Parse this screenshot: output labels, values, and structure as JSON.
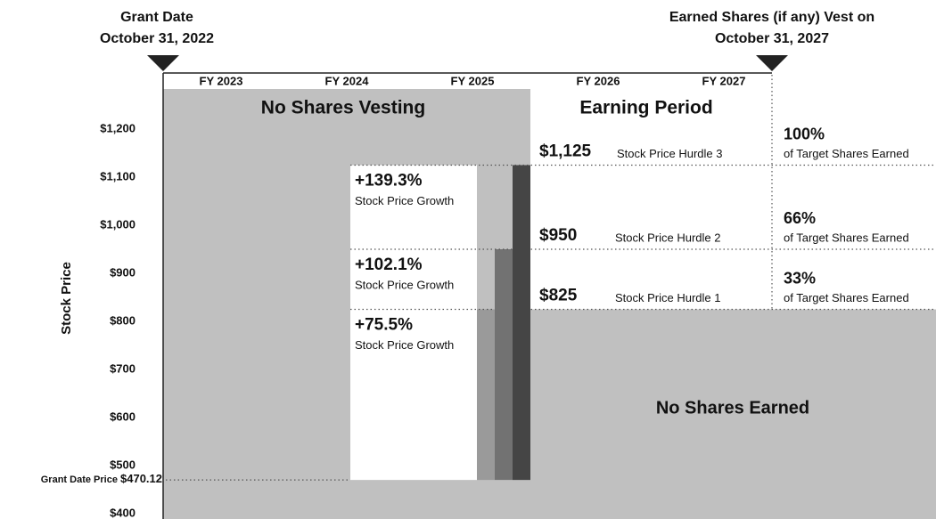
{
  "grant_date": {
    "title": "Grant Date",
    "date": "October 31, 2022"
  },
  "vest_date": {
    "title": "Earned Shares (if any) Vest on",
    "date": "October 31, 2027"
  },
  "fiscal_years": [
    "FY 2023",
    "FY 2024",
    "FY 2025",
    "FY 2026",
    "FY 2027"
  ],
  "y_axis": {
    "label": "Stock Price",
    "ticks": [
      {
        "value": 400,
        "label": "$400"
      },
      {
        "value": 500,
        "label": "$500"
      },
      {
        "value": 600,
        "label": "$600"
      },
      {
        "value": 700,
        "label": "$700"
      },
      {
        "value": 800,
        "label": "$800"
      },
      {
        "value": 900,
        "label": "$900"
      },
      {
        "value": 1000,
        "label": "$1,000"
      },
      {
        "value": 1100,
        "label": "$1,100"
      },
      {
        "value": 1200,
        "label": "$1,200"
      }
    ]
  },
  "grant_price": {
    "label": "Grant Date Price",
    "value": 470.12,
    "value_label": "$470.12"
  },
  "regions": {
    "no_vesting": "No Shares Vesting",
    "earning": "Earning Period",
    "no_earned": "No Shares Earned"
  },
  "hurdles": [
    {
      "value": 825,
      "value_label": "$825",
      "name": "Stock Price Hurdle 1",
      "growth": "+75.5%",
      "growth_label": "Stock Price Growth",
      "earned": "33%",
      "earned_label": "of Target Shares Earned",
      "color": "#9a9a9a"
    },
    {
      "value": 950,
      "value_label": "$950",
      "name": "Stock Price Hurdle 2",
      "growth": "+102.1%",
      "growth_label": "Stock Price Growth",
      "earned": "66%",
      "earned_label": "of Target Shares Earned",
      "color": "#727272"
    },
    {
      "value": 1125,
      "value_label": "$1,125",
      "name": "Stock Price Hurdle 3",
      "growth": "+139.3%",
      "growth_label": "Stock Price Growth",
      "earned": "100%",
      "earned_label": "of Target Shares Earned",
      "color": "#454545"
    }
  ]
}
